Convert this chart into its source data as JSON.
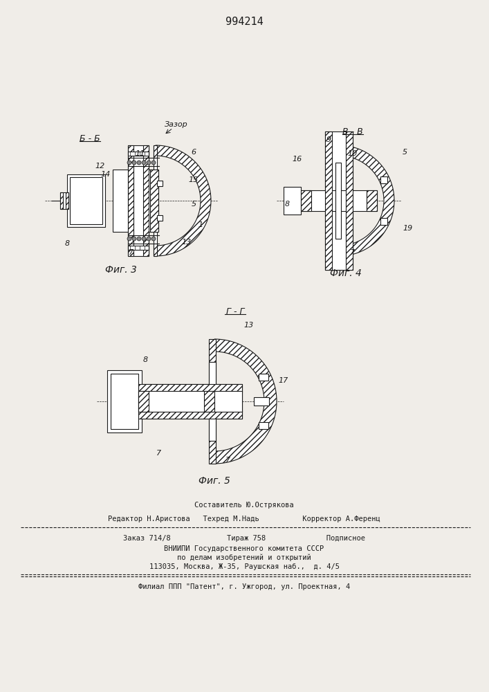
{
  "title_number": "994214",
  "fig3_label": "Фиг. 3",
  "fig4_label": "Фиг. 4",
  "fig5_label": "Фиг. 5",
  "section_bb": "Б - Б",
  "section_vv": "В - В",
  "section_gg": "Г - Г",
  "zazor_label": "Зазор",
  "bg_color": "#f0ede8",
  "line_color": "#1a1a1a",
  "hatch_color": "#1a1a1a",
  "footer_line1": "Составитель Ю.Острякова",
  "footer_line2": "Редактор Н.Аристова   Техред М.Надь          Корректор А.Ференц",
  "footer_line3": "Заказ 714/8             Тираж 758              Подписное",
  "footer_line4": "ВНИИПИ Государственного комитета СССР",
  "footer_line5": "по делам изобретений и открытий",
  "footer_line6": "113035, Москва, Ж-35, Раушская наб.,  д. 4/5",
  "footer_line7": "Филиал ППП \"Патент\", г. Ужгород, ул. Проектная, 4"
}
